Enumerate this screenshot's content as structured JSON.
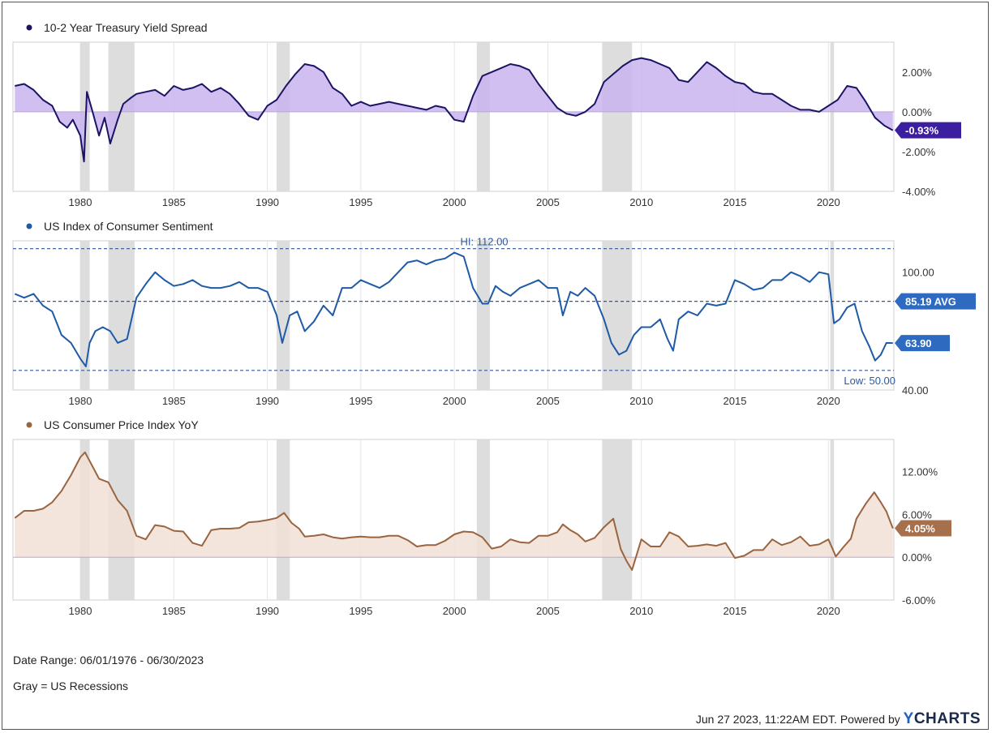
{
  "footer": {
    "date_range": "Date Range: 06/01/1976 - 06/30/2023",
    "recessions_note": "Gray = US Recessions",
    "timestamp": "Jun 27 2023, 11:22AM EDT. Powered by",
    "brand_y": "Y",
    "brand_rest": "CHARTS"
  },
  "recessions": [
    [
      1980.0,
      1980.5
    ],
    [
      1981.5,
      1982.9
    ],
    [
      1990.5,
      1991.2
    ],
    [
      2001.2,
      2001.9
    ],
    [
      2007.9,
      2009.5
    ],
    [
      2020.1,
      2020.3
    ]
  ],
  "x_ticks": [
    "1980",
    "1985",
    "1990",
    "1995",
    "2000",
    "2005",
    "2010",
    "2015",
    "2020"
  ],
  "colors": {
    "spread": "#1b1464",
    "spread_fill": "#c9b4ee",
    "sentiment": "#1f5aa6",
    "cpi": "#9a6440",
    "cpi_fill": "#f1e0d6",
    "recession": "#d9d9d9"
  },
  "chart_data": [
    {
      "type": "area",
      "title": "10-2 Year Treasury Yield Spread",
      "unit": "%",
      "xlim": [
        1976.4,
        2023.5
      ],
      "ylim": [
        -4,
        3.5
      ],
      "yticks": [
        "2.00%",
        "0.00%",
        "-2.00%",
        "-4.00%"
      ],
      "last_label": "-0.93%",
      "series": [
        {
          "x": [
            1976.5,
            1977.0,
            1977.5,
            1978.0,
            1978.5,
            1978.9,
            1979.3,
            1979.6,
            1980.0,
            1980.2,
            1980.35,
            1980.6,
            1981.0,
            1981.3,
            1981.6,
            1982.0,
            1982.3,
            1982.7,
            1983.0,
            1983.5,
            1984.0,
            1984.5,
            1985.0,
            1985.5,
            1986.0,
            1986.5,
            1987.0,
            1987.5,
            1988.0,
            1988.5,
            1989.0,
            1989.5,
            1990.0,
            1990.5,
            1991.0,
            1991.5,
            1992.0,
            1992.5,
            1993.0,
            1993.5,
            1994.0,
            1994.5,
            1995.0,
            1995.5,
            1996.0,
            1996.5,
            1997.0,
            1997.5,
            1998.0,
            1998.5,
            1999.0,
            1999.5,
            2000.0,
            2000.5,
            2001.0,
            2001.5,
            2002.0,
            2002.5,
            2003.0,
            2003.5,
            2004.0,
            2004.5,
            2005.0,
            2005.5,
            2006.0,
            2006.5,
            2007.0,
            2007.5,
            2008.0,
            2008.5,
            2009.0,
            2009.5,
            2010.0,
            2010.5,
            2011.0,
            2011.5,
            2012.0,
            2012.5,
            2013.0,
            2013.5,
            2014.0,
            2014.5,
            2015.0,
            2015.5,
            2016.0,
            2016.5,
            2017.0,
            2017.5,
            2018.0,
            2018.5,
            2019.0,
            2019.5,
            2020.0,
            2020.5,
            2021.0,
            2021.5,
            2022.0,
            2022.5,
            2023.0,
            2023.45
          ],
          "y": [
            1.3,
            1.4,
            1.1,
            0.6,
            0.3,
            -0.5,
            -0.8,
            -0.4,
            -1.2,
            -2.5,
            1.0,
            0.2,
            -1.2,
            -0.3,
            -1.6,
            -0.4,
            0.4,
            0.7,
            0.9,
            1.0,
            1.1,
            0.8,
            1.3,
            1.1,
            1.2,
            1.4,
            1.0,
            1.2,
            0.9,
            0.4,
            -0.2,
            -0.4,
            0.3,
            0.6,
            1.3,
            1.9,
            2.4,
            2.3,
            2.0,
            1.2,
            0.9,
            0.3,
            0.5,
            0.3,
            0.4,
            0.5,
            0.4,
            0.3,
            0.2,
            0.1,
            0.3,
            0.2,
            -0.4,
            -0.5,
            0.8,
            1.8,
            2.0,
            2.2,
            2.4,
            2.3,
            2.1,
            1.4,
            0.8,
            0.2,
            -0.1,
            -0.2,
            0.0,
            0.4,
            1.5,
            1.9,
            2.3,
            2.6,
            2.7,
            2.6,
            2.4,
            2.2,
            1.6,
            1.5,
            2.0,
            2.5,
            2.2,
            1.8,
            1.5,
            1.4,
            1.0,
            0.9,
            0.9,
            0.6,
            0.3,
            0.1,
            0.1,
            0.0,
            0.3,
            0.6,
            1.3,
            1.2,
            0.5,
            -0.3,
            -0.7,
            -0.93
          ]
        }
      ]
    },
    {
      "type": "line",
      "title": "US Index of Consumer Sentiment",
      "xlim": [
        1976.4,
        2023.5
      ],
      "ylim": [
        40,
        116
      ],
      "yticks": [
        "100.00",
        "40.00"
      ],
      "reference_lines": [
        {
          "label": "HI: 112.00",
          "value": 112.0
        },
        {
          "label": "85.19 AVG",
          "value": 85.19
        },
        {
          "label": "Low: 50.00",
          "value": 50.0
        }
      ],
      "last_label": "63.90",
      "series": [
        {
          "x": [
            1976.5,
            1977.0,
            1977.5,
            1978.0,
            1978.5,
            1979.0,
            1979.5,
            1980.0,
            1980.3,
            1980.5,
            1980.8,
            1981.2,
            1981.6,
            1982.0,
            1982.5,
            1983.0,
            1983.5,
            1984.0,
            1984.5,
            1985.0,
            1985.5,
            1986.0,
            1986.5,
            1987.0,
            1987.5,
            1988.0,
            1988.5,
            1989.0,
            1989.5,
            1990.0,
            1990.5,
            1990.8,
            1991.2,
            1991.6,
            1992.0,
            1992.5,
            1993.0,
            1993.5,
            1994.0,
            1994.5,
            1995.0,
            1995.5,
            1996.0,
            1996.5,
            1997.0,
            1997.5,
            1998.0,
            1998.5,
            1999.0,
            1999.5,
            2000.0,
            2000.5,
            2001.0,
            2001.5,
            2001.8,
            2002.2,
            2002.6,
            2003.0,
            2003.5,
            2004.0,
            2004.5,
            2005.0,
            2005.5,
            2005.8,
            2006.2,
            2006.6,
            2007.0,
            2007.5,
            2008.0,
            2008.4,
            2008.8,
            2009.2,
            2009.6,
            2010.0,
            2010.5,
            2011.0,
            2011.4,
            2011.7,
            2012.0,
            2012.5,
            2013.0,
            2013.5,
            2014.0,
            2014.5,
            2015.0,
            2015.5,
            2016.0,
            2016.5,
            2017.0,
            2017.5,
            2018.0,
            2018.5,
            2019.0,
            2019.5,
            2020.0,
            2020.3,
            2020.6,
            2021.0,
            2021.4,
            2021.8,
            2022.2,
            2022.5,
            2022.8,
            2023.1,
            2023.45
          ],
          "y": [
            89,
            87,
            89,
            83,
            80,
            68,
            64,
            56,
            52,
            64,
            70,
            72,
            70,
            64,
            66,
            87,
            94,
            100,
            96,
            93,
            94,
            96,
            93,
            92,
            92,
            93,
            95,
            92,
            92,
            90,
            78,
            64,
            78,
            80,
            70,
            75,
            83,
            78,
            92,
            92,
            96,
            94,
            92,
            95,
            100,
            105,
            106,
            104,
            106,
            107,
            110,
            108,
            92,
            84,
            84,
            93,
            90,
            88,
            92,
            94,
            96,
            92,
            92,
            78,
            90,
            88,
            92,
            88,
            76,
            64,
            58,
            60,
            68,
            72,
            72,
            76,
            66,
            60,
            76,
            80,
            78,
            84,
            83,
            84,
            96,
            94,
            91,
            92,
            96,
            96,
            100,
            98,
            95,
            100,
            99,
            74,
            76,
            82,
            84,
            70,
            62,
            55,
            58,
            64,
            63.9
          ]
        }
      ]
    },
    {
      "type": "area",
      "title": "US Consumer Price Index YoY",
      "unit": "%",
      "xlim": [
        1976.4,
        2023.5
      ],
      "ylim": [
        -6,
        16.5
      ],
      "yticks": [
        "12.00%",
        "6.00%",
        "0.00%",
        "-6.00%"
      ],
      "last_label": "4.05%",
      "series": [
        {
          "x": [
            1976.5,
            1977.0,
            1977.5,
            1978.0,
            1978.5,
            1979.0,
            1979.5,
            1980.0,
            1980.25,
            1980.6,
            1981.0,
            1981.5,
            1982.0,
            1982.5,
            1983.0,
            1983.5,
            1984.0,
            1984.5,
            1985.0,
            1985.5,
            1986.0,
            1986.5,
            1987.0,
            1987.5,
            1988.0,
            1988.5,
            1989.0,
            1989.5,
            1990.0,
            1990.5,
            1990.9,
            1991.3,
            1991.7,
            1992.0,
            1992.5,
            1993.0,
            1993.5,
            1994.0,
            1994.5,
            1995.0,
            1995.5,
            1996.0,
            1996.5,
            1997.0,
            1997.5,
            1998.0,
            1998.5,
            1999.0,
            1999.5,
            2000.0,
            2000.5,
            2001.0,
            2001.5,
            2002.0,
            2002.5,
            2003.0,
            2003.5,
            2004.0,
            2004.5,
            2005.0,
            2005.5,
            2005.8,
            2006.2,
            2006.6,
            2007.0,
            2007.5,
            2008.0,
            2008.5,
            2008.9,
            2009.2,
            2009.5,
            2010.0,
            2010.5,
            2011.0,
            2011.5,
            2012.0,
            2012.5,
            2013.0,
            2013.5,
            2014.0,
            2014.5,
            2015.0,
            2015.5,
            2016.0,
            2016.5,
            2017.0,
            2017.5,
            2018.0,
            2018.5,
            2019.0,
            2019.5,
            2020.0,
            2020.4,
            2020.8,
            2021.2,
            2021.5,
            2022.0,
            2022.45,
            2022.8,
            2023.1,
            2023.45
          ],
          "y": [
            5.5,
            6.5,
            6.5,
            6.8,
            7.7,
            9.3,
            11.5,
            14.0,
            14.7,
            13.0,
            11.0,
            10.5,
            8.0,
            6.5,
            3.0,
            2.5,
            4.5,
            4.3,
            3.7,
            3.6,
            2.0,
            1.6,
            3.8,
            4.0,
            4.0,
            4.1,
            4.9,
            5.0,
            5.2,
            5.5,
            6.2,
            4.8,
            4.0,
            2.9,
            3.0,
            3.2,
            2.8,
            2.6,
            2.8,
            2.9,
            2.8,
            2.8,
            3.0,
            3.0,
            2.4,
            1.5,
            1.7,
            1.7,
            2.3,
            3.2,
            3.6,
            3.5,
            2.8,
            1.2,
            1.5,
            2.5,
            2.1,
            2.0,
            3.0,
            3.0,
            3.5,
            4.6,
            3.8,
            3.2,
            2.2,
            2.7,
            4.2,
            5.4,
            1.1,
            -0.5,
            -1.8,
            2.5,
            1.5,
            1.5,
            3.5,
            2.9,
            1.5,
            1.6,
            1.8,
            1.6,
            2.0,
            -0.1,
            0.2,
            1.0,
            1.0,
            2.5,
            1.7,
            2.1,
            2.9,
            1.6,
            1.8,
            2.5,
            0.1,
            1.4,
            2.6,
            5.4,
            7.5,
            9.1,
            7.7,
            6.4,
            4.05
          ]
        }
      ]
    }
  ]
}
